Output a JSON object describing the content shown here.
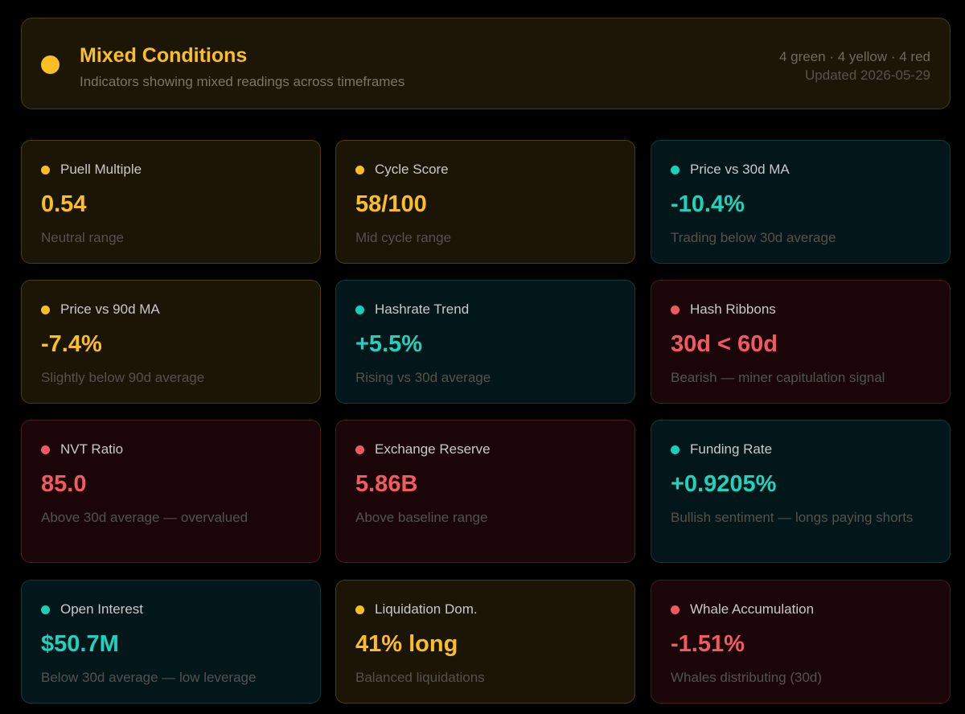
{
  "banner": {
    "title": "Mixed Conditions",
    "subtitle": "Indicators showing mixed readings across timeframes",
    "counts": "4 green · 4 yellow · 4 red",
    "updated": "Updated 2026-05-29",
    "status": "yellow"
  },
  "colors": {
    "yellow": "#fbbf24",
    "green": "#1dd3bb",
    "red": "#f25a5f",
    "background": "#000000"
  },
  "cards": [
    {
      "label": "Puell Multiple",
      "value": "0.54",
      "desc": "Neutral range",
      "status": "yellow"
    },
    {
      "label": "Cycle Score",
      "value": "58/100",
      "desc": "Mid cycle range",
      "status": "yellow"
    },
    {
      "label": "Price vs 30d MA",
      "value": "-10.4%",
      "desc": "Trading below 30d average",
      "status": "green"
    },
    {
      "label": "Price vs 90d MA",
      "value": "-7.4%",
      "desc": "Slightly below 90d average",
      "status": "yellow"
    },
    {
      "label": "Hashrate Trend",
      "value": "+5.5%",
      "desc": "Rising vs 30d average",
      "status": "green"
    },
    {
      "label": "Hash Ribbons",
      "value": "30d < 60d",
      "desc": "Bearish — miner capitulation signal",
      "status": "red"
    },
    {
      "label": "NVT Ratio",
      "value": "85.0",
      "desc": "Above 30d average — overvalued",
      "status": "red"
    },
    {
      "label": "Exchange Reserve",
      "value": "5.86B",
      "desc": "Above baseline range",
      "status": "red"
    },
    {
      "label": "Funding Rate",
      "value": "+0.9205%",
      "desc": "Bullish sentiment — longs paying shorts",
      "status": "green"
    },
    {
      "label": "Open Interest",
      "value": "$50.7M",
      "desc": "Below 30d average — low leverage",
      "status": "green"
    },
    {
      "label": "Liquidation Dom.",
      "value": "41% long",
      "desc": "Balanced liquidations",
      "status": "yellow"
    },
    {
      "label": "Whale Accumulation",
      "value": "-1.51%",
      "desc": "Whales distributing (30d)",
      "status": "red"
    }
  ]
}
